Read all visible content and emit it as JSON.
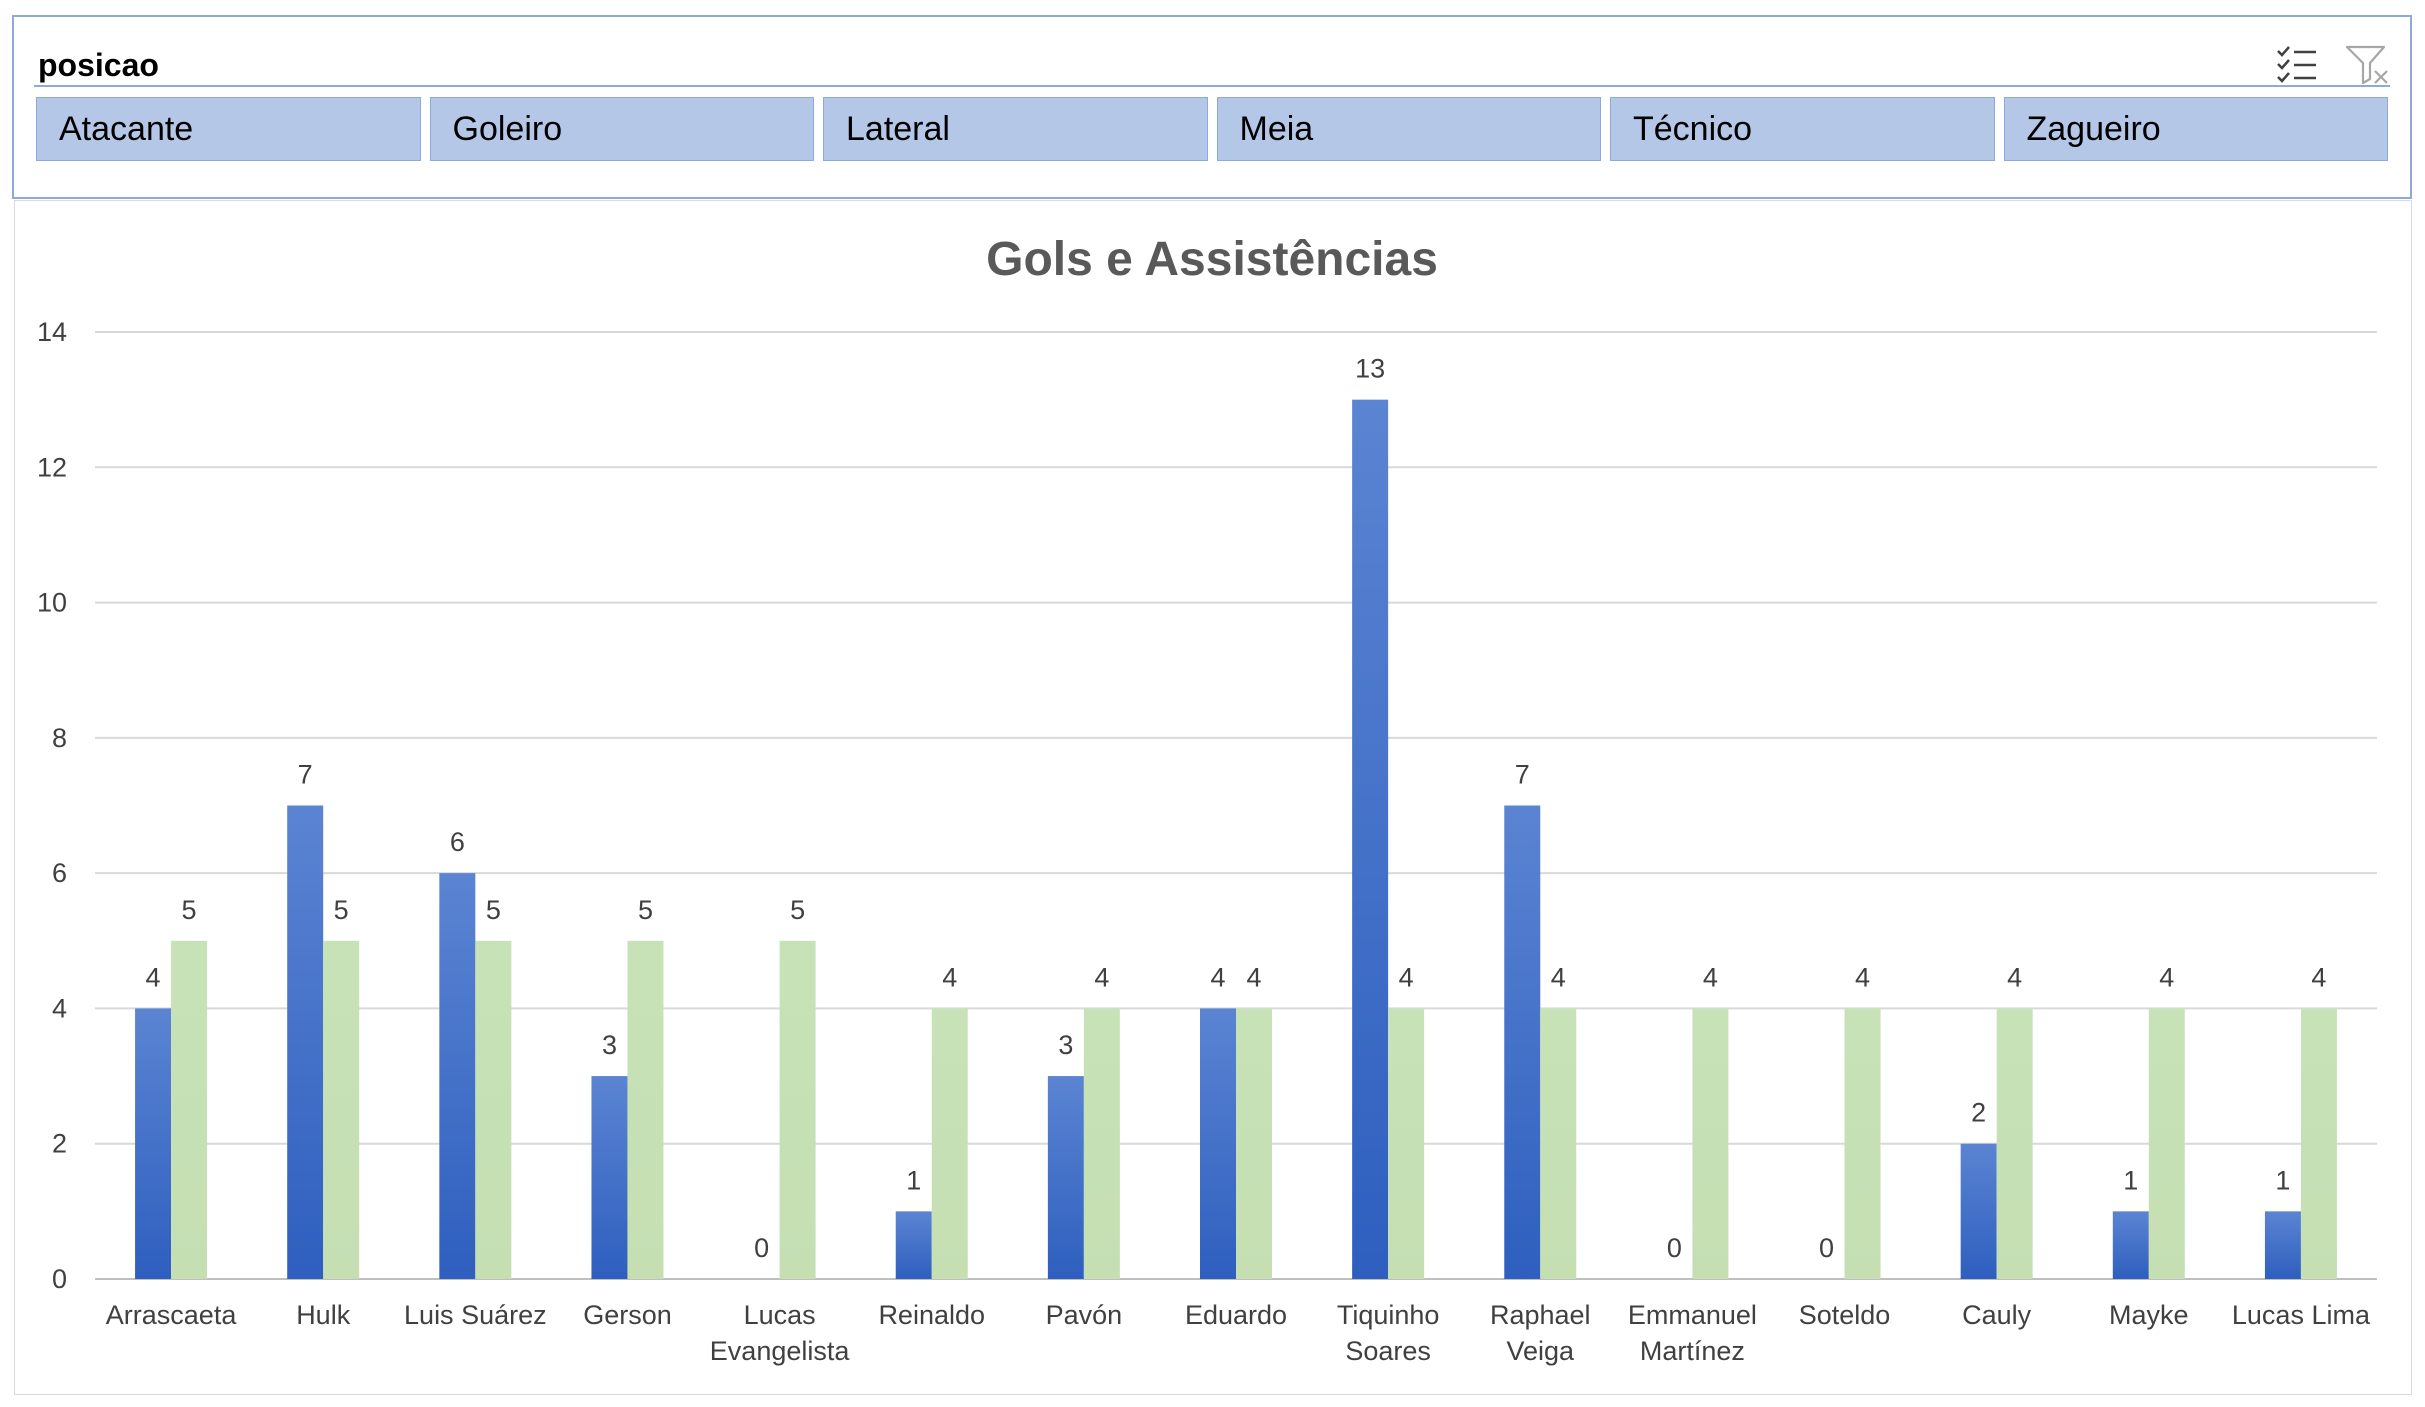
{
  "slicer": {
    "title": "posicao",
    "icons": {
      "multi_select": "multi-select-icon",
      "clear_filter": "clear-filter-icon"
    },
    "items": [
      "Atacante",
      "Goleiro",
      "Lateral",
      "Meia",
      "Técnico",
      "Zagueiro"
    ],
    "colors": {
      "button_fill": "#b4c7e7",
      "border": "#8eaadb"
    }
  },
  "chart_data": {
    "type": "bar",
    "title": "Gols e Assistências",
    "xlabel": "",
    "ylabel": "",
    "ylim": [
      0,
      14
    ],
    "yticks": [
      0,
      2,
      4,
      6,
      8,
      10,
      12,
      14
    ],
    "grid": true,
    "legend": "none",
    "categories": [
      [
        "Arrascaeta"
      ],
      [
        "Hulk"
      ],
      [
        "Luis Suárez"
      ],
      [
        "Gerson"
      ],
      [
        "Lucas",
        "Evangelista"
      ],
      [
        "Reinaldo"
      ],
      [
        "Pavón"
      ],
      [
        "Eduardo"
      ],
      [
        "Tiquinho",
        "Soares"
      ],
      [
        "Raphael",
        "Veiga"
      ],
      [
        "Emmanuel",
        "Martínez"
      ],
      [
        "Soteldo"
      ],
      [
        "Cauly"
      ],
      [
        "Mayke"
      ],
      [
        "Lucas Lima"
      ]
    ],
    "series": [
      {
        "values": [
          4,
          7,
          6,
          3,
          0,
          1,
          3,
          4,
          13,
          7,
          0,
          0,
          2,
          1,
          1
        ],
        "color": "#4472c4"
      },
      {
        "values": [
          5,
          5,
          5,
          5,
          5,
          4,
          4,
          4,
          4,
          4,
          4,
          4,
          4,
          4,
          4
        ],
        "color": "#c5e0b4"
      }
    ]
  }
}
